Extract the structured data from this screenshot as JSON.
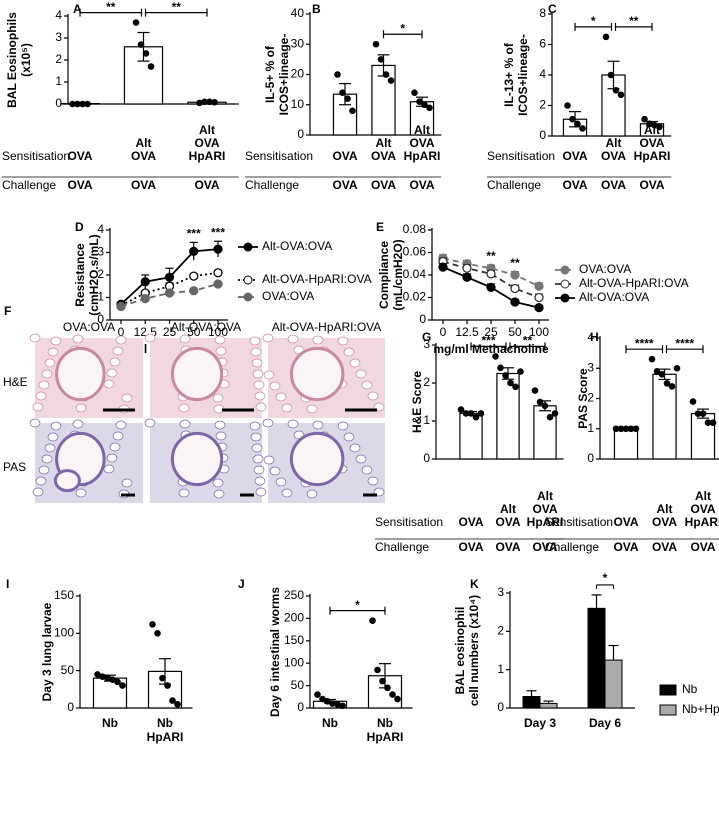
{
  "chart_data": [
    {
      "type": "bar",
      "panel": "A",
      "y_label": "BAL Eosinophils\n(x10⁵)",
      "categories": [
        "OVA",
        "Alt\nOVA",
        "Alt\nOVA\nHpARI"
      ],
      "values": [
        0.02,
        2.6,
        0.08
      ],
      "errors": [
        0.01,
        0.65,
        0.03
      ],
      "points": [
        [
          0,
          0,
          0,
          0
        ],
        [
          3.7,
          2.7,
          2.3,
          1.7
        ],
        [
          0.05,
          0.1,
          0.1,
          0.08
        ]
      ],
      "ylim": [
        0,
        4
      ],
      "yticks": [
        0,
        1,
        2,
        3,
        4
      ],
      "row_labels": [
        "Sensitisation",
        "Challenge"
      ],
      "challenge": [
        "OVA",
        "OVA",
        "OVA"
      ],
      "significance": [
        {
          "between": [
            0,
            1
          ],
          "label": "**"
        },
        {
          "between": [
            1,
            2
          ],
          "label": "**"
        }
      ],
      "color": "#ffffff"
    },
    {
      "type": "bar",
      "panel": "B",
      "y_label": "IL-5+ % of\nICOS+lineage-",
      "categories": [
        "OVA",
        "Alt\nOVA",
        "Alt\nOVA\nHpARI"
      ],
      "values": [
        13.5,
        23,
        11
      ],
      "errors": [
        3.5,
        3.5,
        1.5
      ],
      "points": [
        [
          20,
          14,
          12,
          8
        ],
        [
          30,
          25,
          20,
          18
        ],
        [
          14,
          11,
          10,
          9
        ]
      ],
      "ylim": [
        0,
        40
      ],
      "yticks": [
        0,
        10,
        20,
        30,
        40
      ],
      "row_labels": [
        "Sensitisation",
        "Challenge"
      ],
      "challenge": [
        "OVA",
        "OVA",
        "OVA"
      ],
      "significance": [
        {
          "between": [
            1,
            2
          ],
          "label": "*"
        }
      ],
      "color": "#ffffff"
    },
    {
      "type": "bar",
      "panel": "C",
      "y_label": "IL-13+ % of\nICOS+lineage-",
      "categories": [
        "OVA",
        "Alt\nOVA",
        "Alt\nOVA\nHpARI"
      ],
      "values": [
        1.1,
        4,
        0.8
      ],
      "errors": [
        0.5,
        0.9,
        0.15
      ],
      "points": [
        [
          2,
          1.1,
          0.8,
          0.5
        ],
        [
          6.5,
          4,
          3,
          2.7
        ],
        [
          1.1,
          0.8,
          0.7,
          0.6
        ]
      ],
      "ylim": [
        0,
        8
      ],
      "yticks": [
        0,
        2,
        4,
        6,
        8
      ],
      "row_labels": [
        "Sensitisation",
        "Challenge"
      ],
      "challenge": [
        "OVA",
        "OVA",
        "OVA"
      ],
      "significance": [
        {
          "between": [
            0,
            1
          ],
          "label": "*"
        },
        {
          "between": [
            1,
            2
          ],
          "label": "**"
        }
      ],
      "color": "#ffffff"
    },
    {
      "type": "line",
      "panel": "D",
      "y_label": "Resistance\n(cmH2O.s/mL)",
      "x_label": "mg/ml Methacholine",
      "categories": [
        "0",
        "12.5",
        "25",
        "50",
        "100"
      ],
      "ylim": [
        0,
        4
      ],
      "yticks": [
        0,
        1,
        2,
        3,
        4
      ],
      "series": [
        {
          "name": "Alt-OVA:OVA",
          "color": "#000000",
          "marker": "filled",
          "dash": "solid",
          "values": [
            0.7,
            1.7,
            1.9,
            3.05,
            3.15
          ],
          "errors": [
            0.05,
            0.3,
            0.4,
            0.4,
            0.35
          ]
        },
        {
          "name": "Alt-OVA-HpARI:OVA",
          "color": "#000000",
          "marker": "open",
          "dash": "dotted",
          "values": [
            0.65,
            1.2,
            1.5,
            1.95,
            2.1
          ],
          "errors": [
            0.05,
            0.1,
            0.15,
            0.1,
            0.1
          ]
        },
        {
          "name": "OVA:OVA",
          "color": "#666666",
          "marker": "filled",
          "dash": "dashed",
          "values": [
            0.6,
            0.95,
            1.2,
            1.3,
            1.6
          ],
          "errors": [
            0.03,
            0.05,
            0.05,
            0.05,
            0.05
          ]
        }
      ],
      "annotations": [
        {
          "category": 3,
          "label": "***"
        },
        {
          "category": 4,
          "label": "***"
        }
      ]
    },
    {
      "type": "line",
      "panel": "E",
      "y_label": "Compliance\n(mL/cmH2O)",
      "x_label": "mg/ml Methacholine",
      "categories": [
        "0",
        "12.5",
        "25",
        "50",
        "100"
      ],
      "ylim": [
        0,
        0.08
      ],
      "yticks": [
        0,
        0.02,
        0.04,
        0.06,
        0.08
      ],
      "series": [
        {
          "name": "OVA:OVA",
          "color": "#777777",
          "marker": "filled",
          "dash": "dashed",
          "values": [
            0.055,
            0.05,
            0.046,
            0.04,
            0.03
          ],
          "errors": [
            0.003,
            0.003,
            0.003,
            0.003,
            0.003
          ]
        },
        {
          "name": "Alt-OVA-HpARI:OVA",
          "color": "#333333",
          "marker": "open",
          "dash": "dashed",
          "values": [
            0.052,
            0.046,
            0.041,
            0.028,
            0.02
          ],
          "errors": [
            0.003,
            0.003,
            0.003,
            0.003,
            0.003
          ]
        },
        {
          "name": "Alt-OVA:OVA",
          "color": "#000000",
          "marker": "filled",
          "dash": "solid",
          "values": [
            0.047,
            0.038,
            0.029,
            0.016,
            0.011
          ],
          "errors": [
            0.003,
            0.003,
            0.003,
            0.002,
            0.001
          ]
        }
      ],
      "annotations": [
        {
          "category": 2,
          "label": "**"
        },
        {
          "category": 3,
          "label": "**"
        }
      ]
    },
    {
      "type": "bar",
      "panel": "G",
      "y_label": "H&E Score",
      "categories": [
        "OVA",
        "Alt\nOVA",
        "Alt\nOVA\nHpARI"
      ],
      "values": [
        1.2,
        2.25,
        1.4
      ],
      "errors": [
        0.05,
        0.15,
        0.13
      ],
      "points": [
        [
          1.3,
          1.2,
          1.2,
          1.1,
          1.2
        ],
        [
          2.7,
          2.4,
          2.2,
          2,
          1.9,
          2.3
        ],
        [
          1.8,
          1.5,
          1.4,
          1.1,
          1.2
        ]
      ],
      "ylim": [
        0,
        3
      ],
      "yticks": [
        0,
        1,
        2,
        3
      ],
      "row_labels": [
        "Sensitisation",
        "Challenge"
      ],
      "challenge": [
        "OVA",
        "OVA",
        "OVA"
      ],
      "significance": [
        {
          "between": [
            0,
            1
          ],
          "label": "***"
        },
        {
          "between": [
            1,
            2
          ],
          "label": "**"
        }
      ],
      "color": "#ffffff"
    },
    {
      "type": "bar",
      "panel": "H",
      "y_label": "PAS Score",
      "categories": [
        "OVA",
        "Alt\nOVA",
        "Alt\nOVA\nHpARI"
      ],
      "values": [
        1,
        2.8,
        1.5
      ],
      "errors": [
        0.03,
        0.17,
        0.15
      ],
      "points": [
        [
          1,
          1,
          1,
          1,
          1
        ],
        [
          3.3,
          2.9,
          2.8,
          2.5,
          2.4,
          3
        ],
        [
          1.9,
          1.5,
          1.5,
          1.2,
          1.2
        ]
      ],
      "ylim": [
        0,
        4
      ],
      "yticks": [
        0,
        1,
        2,
        3,
        4
      ],
      "row_labels": [
        "Sensitisation",
        "Challenge"
      ],
      "challenge": [
        "OVA",
        "OVA",
        "OVA"
      ],
      "significance": [
        {
          "between": [
            0,
            1
          ],
          "label": "****"
        },
        {
          "between": [
            1,
            2
          ],
          "label": "****"
        }
      ],
      "color": "#ffffff"
    },
    {
      "type": "bar",
      "panel": "I",
      "y_label": "Day 3 lung larvae",
      "categories": [
        "Nb",
        "Nb\nHpARI"
      ],
      "values": [
        40,
        49
      ],
      "errors": [
        4,
        17
      ],
      "points": [
        [
          45,
          42,
          40,
          38,
          35,
          30
        ],
        [
          112,
          100,
          40,
          30,
          10,
          5
        ]
      ],
      "ylim": [
        0,
        150
      ],
      "yticks": [
        0,
        50,
        100,
        150
      ],
      "significance": [],
      "color": "#ffffff"
    },
    {
      "type": "bar",
      "panel": "J",
      "y_label": "Day 6 intestinal worms",
      "categories": [
        "Nb",
        "Nb\nHpARI"
      ],
      "values": [
        15,
        72
      ],
      "errors": [
        4,
        27
      ],
      "points": [
        [
          30,
          20,
          15,
          10,
          8,
          5
        ],
        [
          195,
          85,
          60,
          45,
          30,
          20
        ]
      ],
      "ylim": [
        0,
        250
      ],
      "yticks": [
        0,
        50,
        100,
        150,
        200,
        250
      ],
      "significance": [
        {
          "between": [
            0,
            1
          ],
          "label": "*"
        }
      ],
      "color": "#ffffff"
    },
    {
      "type": "grouped_bar",
      "panel": "K",
      "y_label": "BAL eosinophil\ncell numbers (x10⁴)",
      "categories": [
        "Day 3",
        "Day 6"
      ],
      "ylim": [
        0,
        3
      ],
      "yticks": [
        0,
        1,
        2,
        3
      ],
      "series": [
        {
          "name": "Nb",
          "color": "#000000",
          "values": [
            0.3,
            2.6
          ],
          "errors": [
            0.15,
            0.35
          ]
        },
        {
          "name": "Nb+HpARI",
          "color": "#aaaaaa",
          "values": [
            0.12,
            1.25
          ],
          "errors": [
            0.06,
            0.38
          ]
        }
      ],
      "significance": [
        {
          "category": 1,
          "label": "*"
        }
      ]
    }
  ],
  "histology": {
    "panel": "F",
    "columns": [
      "OVA:OVA",
      "Alt-OVA:OVA",
      "Alt-OVA-HpARI:OVA"
    ],
    "rows": [
      "H&E",
      "PAS"
    ]
  }
}
